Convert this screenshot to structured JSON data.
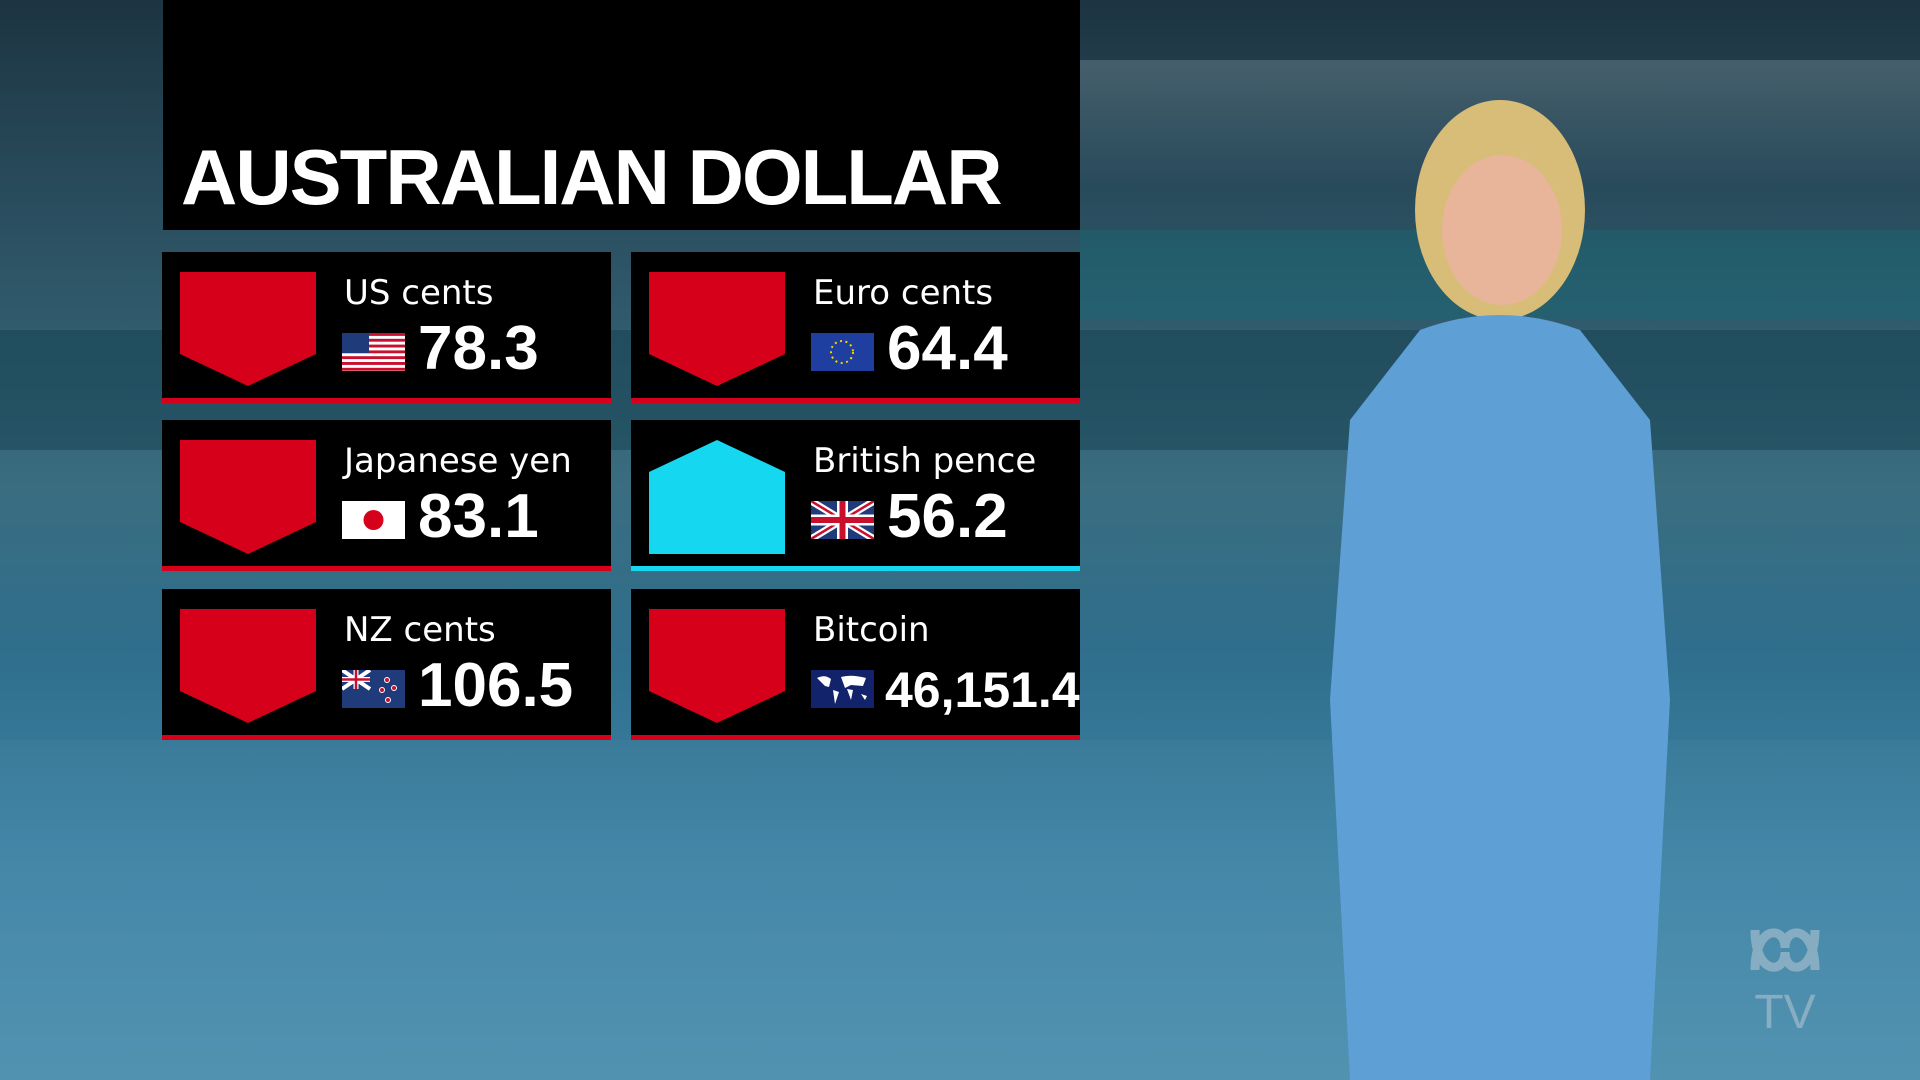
{
  "title": "AUSTRALIAN DOLLAR",
  "colors": {
    "down": "#d7001a",
    "up": "#15d8f0",
    "panel": "#000000"
  },
  "rates": [
    {
      "label": "US cents",
      "value": "78.3",
      "flag": "us-flag-icon",
      "direction": "down"
    },
    {
      "label": "Euro cents",
      "value": "64.4",
      "flag": "eu-flag-icon",
      "direction": "down"
    },
    {
      "label": "Japanese yen",
      "value": "83.1",
      "flag": "japan-flag-icon",
      "direction": "down"
    },
    {
      "label": "British pence",
      "value": "56.2",
      "flag": "uk-flag-icon",
      "direction": "up"
    },
    {
      "label": "NZ cents",
      "value": "106.5",
      "flag": "nz-flag-icon",
      "direction": "down"
    },
    {
      "label": "Bitcoin",
      "value": "46,151.4",
      "flag": "world-map-icon",
      "direction": "down"
    }
  ],
  "logo": "ABC TV"
}
